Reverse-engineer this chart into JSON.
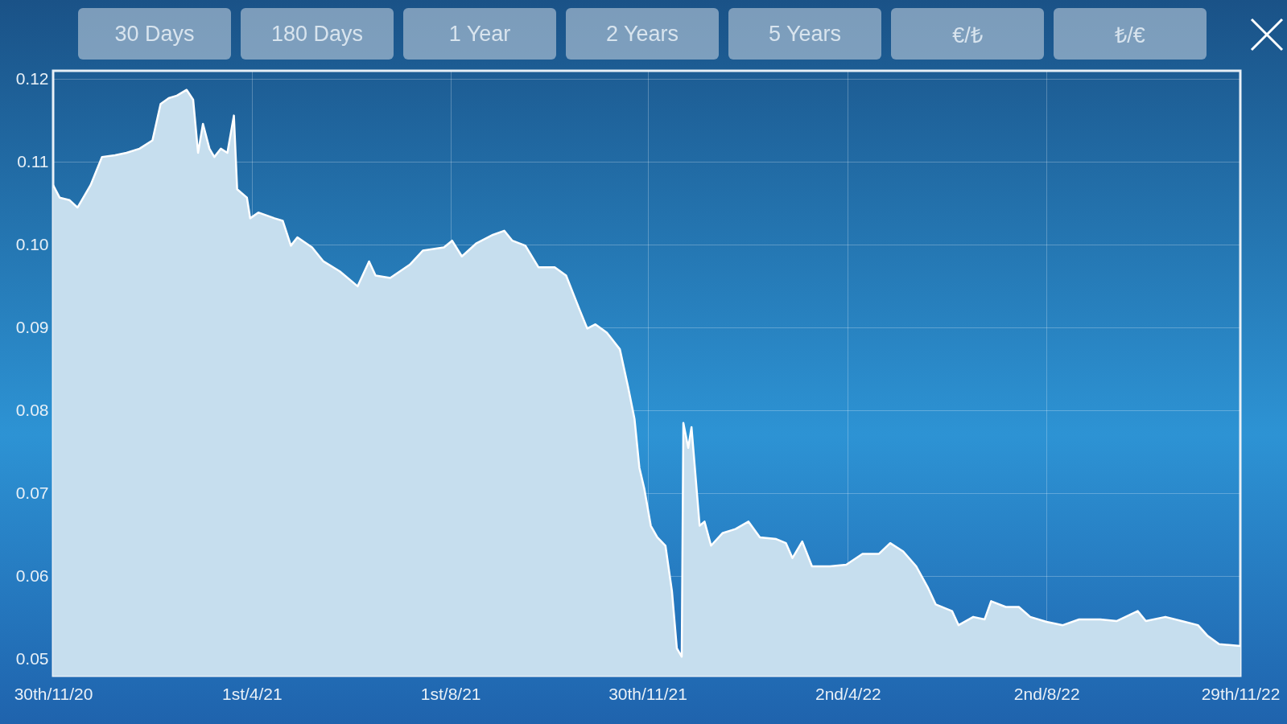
{
  "chart_data": {
    "type": "area",
    "annotations": [
      "30 Days",
      "180 Days",
      "1 Year",
      "2 Years",
      "5 Years",
      "€/₺",
      "₺/€"
    ],
    "x": [
      "2020-11-30",
      "2020-12-04",
      "2020-12-10",
      "2020-12-15",
      "2020-12-23",
      "2020-12-30",
      "2021-01-07",
      "2021-01-14",
      "2021-01-22",
      "2021-01-30",
      "2021-02-04",
      "2021-02-09",
      "2021-02-14",
      "2021-02-20",
      "2021-02-24",
      "2021-02-27",
      "2021-03-02",
      "2021-03-06",
      "2021-03-09",
      "2021-03-13",
      "2021-03-17",
      "2021-03-21",
      "2021-03-23",
      "2021-03-29",
      "2021-03-31",
      "2021-04-05",
      "2021-04-15",
      "2021-04-20",
      "2021-04-25",
      "2021-04-29",
      "2021-05-08",
      "2021-05-15",
      "2021-05-25",
      "2021-06-05",
      "2021-06-12",
      "2021-06-16",
      "2021-06-25",
      "2021-07-07",
      "2021-07-15",
      "2021-07-28",
      "2021-08-02",
      "2021-08-08",
      "2021-08-17",
      "2021-08-27",
      "2021-09-03",
      "2021-09-08",
      "2021-09-16",
      "2021-09-24",
      "2021-10-04",
      "2021-10-11",
      "2021-10-19",
      "2021-10-24",
      "2021-10-29",
      "2021-11-05",
      "2021-11-13",
      "2021-11-18",
      "2021-11-22",
      "2021-11-25",
      "2021-11-28",
      "2021-12-02",
      "2021-12-06",
      "2021-12-11",
      "2021-12-15",
      "2021-12-18",
      "2021-12-21",
      "2021-12-22",
      "2021-12-25",
      "2021-12-27",
      "2022-01-01",
      "2022-01-04",
      "2022-01-08",
      "2022-01-15",
      "2022-01-23",
      "2022-01-31",
      "2022-02-07",
      "2022-02-17",
      "2022-02-23",
      "2022-02-27",
      "2022-03-05",
      "2022-03-11",
      "2022-03-22",
      "2022-04-01",
      "2022-04-11",
      "2022-04-21",
      "2022-04-28",
      "2022-05-06",
      "2022-05-14",
      "2022-05-21",
      "2022-05-26",
      "2022-06-05",
      "2022-06-09",
      "2022-06-18",
      "2022-06-25",
      "2022-06-29",
      "2022-07-08",
      "2022-07-16",
      "2022-07-23",
      "2022-08-02",
      "2022-08-12",
      "2022-08-22",
      "2022-09-04",
      "2022-09-14",
      "2022-09-27",
      "2022-10-02",
      "2022-10-14",
      "2022-10-24",
      "2022-11-03",
      "2022-11-09",
      "2022-11-16",
      "2022-11-29"
    ],
    "series": [
      {
        "color": "#c6deee",
        "values": [
          0.1072,
          0.1057,
          0.1054,
          0.1045,
          0.1072,
          0.1106,
          0.1108,
          0.1111,
          0.1116,
          0.1126,
          0.117,
          0.1177,
          0.118,
          0.1187,
          0.1175,
          0.1111,
          0.1146,
          0.1116,
          0.1106,
          0.1116,
          0.1111,
          0.1156,
          0.1067,
          0.1057,
          0.1032,
          0.1039,
          0.1032,
          0.1029,
          0.0999,
          0.1009,
          0.0997,
          0.098,
          0.0968,
          0.095,
          0.098,
          0.0963,
          0.096,
          0.0976,
          0.0993,
          0.0997,
          0.1005,
          0.0986,
          0.1002,
          0.1012,
          0.1017,
          0.1005,
          0.0999,
          0.0973,
          0.0973,
          0.0963,
          0.0923,
          0.0899,
          0.0904,
          0.0894,
          0.0874,
          0.0829,
          0.079,
          0.0731,
          0.0706,
          0.0661,
          0.0647,
          0.0637,
          0.0582,
          0.0513,
          0.0503,
          0.0785,
          0.0755,
          0.078,
          0.0661,
          0.0666,
          0.0637,
          0.0652,
          0.0657,
          0.0666,
          0.0647,
          0.0645,
          0.064,
          0.0622,
          0.0642,
          0.0612,
          0.0612,
          0.0614,
          0.0627,
          0.0627,
          0.064,
          0.063,
          0.0612,
          0.0587,
          0.0566,
          0.0558,
          0.0541,
          0.0551,
          0.0548,
          0.057,
          0.0563,
          0.0563,
          0.0551,
          0.0545,
          0.0541,
          0.0548,
          0.0548,
          0.0546,
          0.0558,
          0.0546,
          0.0551,
          0.0546,
          0.0541,
          0.0528,
          0.0518,
          0.0516
        ]
      }
    ],
    "xlim": [
      "2020-11-30",
      "2022-11-29"
    ],
    "xticks": [
      {
        "value": "2020-11-30",
        "label": "30th/11/20"
      },
      {
        "value": "2021-04-01",
        "label": "1st/4/21"
      },
      {
        "value": "2021-08-01",
        "label": "1st/8/21"
      },
      {
        "value": "2021-11-30",
        "label": "30th/11/21"
      },
      {
        "value": "2022-04-02",
        "label": "2nd/4/22"
      },
      {
        "value": "2022-08-02",
        "label": "2nd/8/22"
      },
      {
        "value": "2022-11-29",
        "label": "29th/11/22"
      }
    ],
    "ylim": [
      0.048,
      0.121
    ],
    "yticks": [
      {
        "value": 0.05,
        "label": "0.05"
      },
      {
        "value": 0.06,
        "label": "0.06"
      },
      {
        "value": 0.07,
        "label": "0.07"
      },
      {
        "value": 0.08,
        "label": "0.08"
      },
      {
        "value": 0.09,
        "label": "0.09"
      },
      {
        "value": 0.1,
        "label": "0.10"
      },
      {
        "value": 0.11,
        "label": "0.11"
      },
      {
        "value": 0.12,
        "label": "0.12"
      }
    ],
    "grid": true
  }
}
